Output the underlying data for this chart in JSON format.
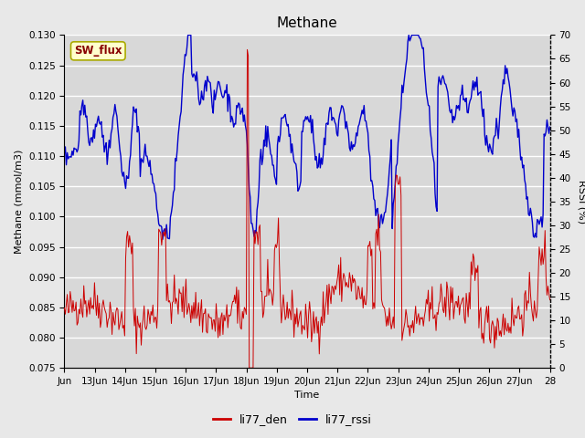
{
  "title": "Methane",
  "xlabel": "Time",
  "ylabel_left": "Methane (mmol/m3)",
  "ylabel_right": "RSSI (%)",
  "ylim_left": [
    0.075,
    0.13
  ],
  "ylim_right": [
    0,
    70
  ],
  "xlim": [
    0,
    16
  ],
  "x_tick_labels": [
    "Jun",
    "13Jun",
    "14Jun",
    "15Jun",
    "16Jun",
    "17Jun",
    "18Jun",
    "19Jun",
    "20Jun",
    "21Jun",
    "22Jun",
    "23Jun",
    "24Jun",
    "25Jun",
    "26Jun",
    "27Jun",
    "28"
  ],
  "x_tick_positions": [
    0,
    1,
    2,
    3,
    4,
    5,
    6,
    7,
    8,
    9,
    10,
    11,
    12,
    13,
    14,
    15,
    16
  ],
  "background_color": "#e8e8e8",
  "plot_bg_color": "#d8d8d8",
  "grid_color": "#ffffff",
  "annotation_text": "SW_flux",
  "annotation_bg": "#ffffcc",
  "annotation_border": "#aaaa00",
  "annotation_text_color": "#880000",
  "title_fontsize": 11,
  "axis_label_fontsize": 8,
  "tick_fontsize": 7.5,
  "legend_fontsize": 9,
  "line_red_color": "#cc0000",
  "line_blue_color": "#0000cc",
  "left_yticks": [
    0.075,
    0.08,
    0.085,
    0.09,
    0.095,
    0.1,
    0.105,
    0.11,
    0.115,
    0.12,
    0.125,
    0.13
  ],
  "right_yticks": [
    0,
    5,
    10,
    15,
    20,
    25,
    30,
    35,
    40,
    45,
    50,
    55,
    60,
    65,
    70
  ]
}
